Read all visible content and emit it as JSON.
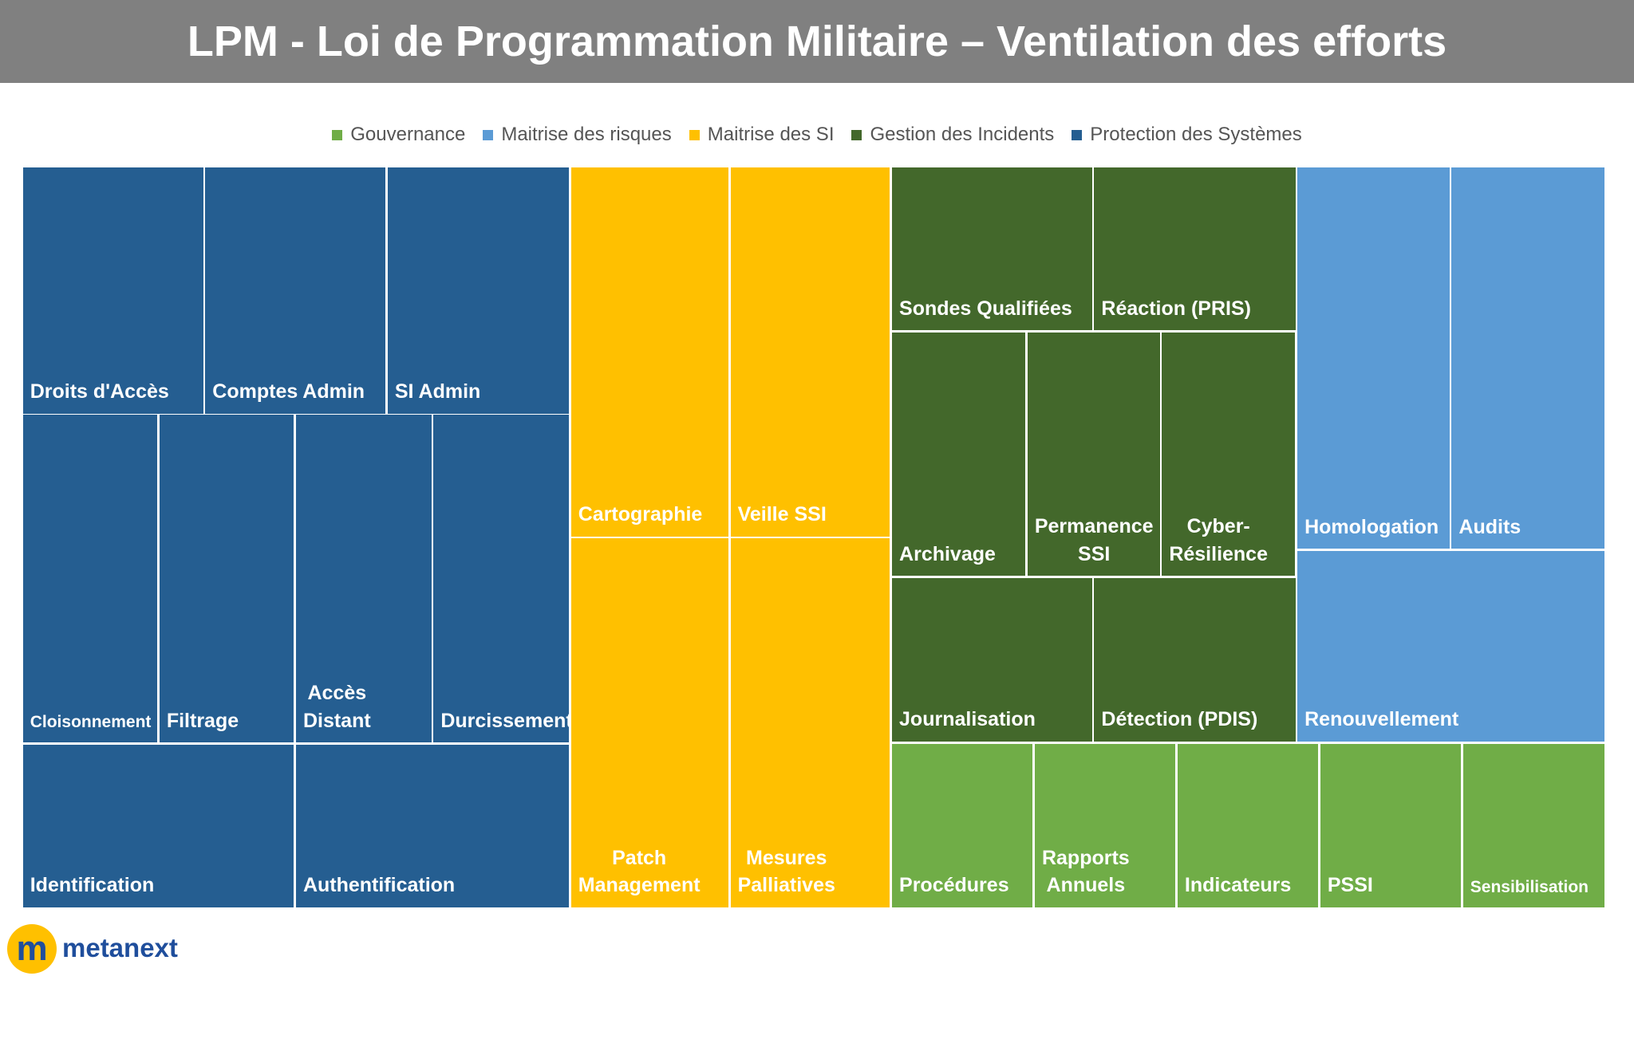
{
  "header": {
    "title": "LPM - Loi de Programmation Militaire – Ventilation des efforts"
  },
  "legend": [
    {
      "label": "Gouvernance",
      "color": "#70AD47"
    },
    {
      "label": "Maitrise des risques",
      "color": "#5B9BD5"
    },
    {
      "label": "Maitrise des SI",
      "color": "#FFC000"
    },
    {
      "label": "Gestion des Incidents",
      "color": "#43682B"
    },
    {
      "label": "Protection des Systèmes",
      "color": "#255E91"
    }
  ],
  "cells": [
    {
      "label": "Droits d'Accès",
      "group": 4
    },
    {
      "label": "Comptes Admin",
      "group": 4
    },
    {
      "label": "SI Admin",
      "group": 4
    },
    {
      "label": "Cloisonnement",
      "group": 4
    },
    {
      "label": "Filtrage",
      "group": 4
    },
    {
      "label": "Accès Distant",
      "group": 4
    },
    {
      "label": "Durcissement",
      "group": 4
    },
    {
      "label": "Identification",
      "group": 4
    },
    {
      "label": "Authentification",
      "group": 4
    },
    {
      "label": "Cartographie",
      "group": 2
    },
    {
      "label": "Veille SSI",
      "group": 2
    },
    {
      "label": "Patch Management",
      "group": 2
    },
    {
      "label": "Mesures Palliatives",
      "group": 2
    },
    {
      "label": "Sondes Qualifiées",
      "group": 3
    },
    {
      "label": "Réaction (PRIS)",
      "group": 3
    },
    {
      "label": "Archivage",
      "group": 3
    },
    {
      "label": "Permanence SSI",
      "group": 3
    },
    {
      "label": "Cyber-Résilience",
      "group": 3
    },
    {
      "label": "Journalisation",
      "group": 3
    },
    {
      "label": "Détection (PDIS)",
      "group": 3
    },
    {
      "label": "Homologation",
      "group": 1
    },
    {
      "label": "Audits",
      "group": 1
    },
    {
      "label": "Renouvellement",
      "group": 1
    },
    {
      "label": "Procédures",
      "group": 0
    },
    {
      "label": "Rapports Annuels",
      "group": 0
    },
    {
      "label": "Indicateurs",
      "group": 0
    },
    {
      "label": "PSSI",
      "group": 0
    },
    {
      "label": "Sensibilisation",
      "group": 0
    }
  ],
  "logo": {
    "icon": "m",
    "text": "metanext"
  }
}
